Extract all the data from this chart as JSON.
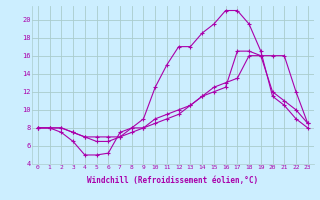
{
  "xlabel": "Windchill (Refroidissement éolien,°C)",
  "bg_color": "#cceeff",
  "grid_color": "#aacccc",
  "line_color": "#aa00aa",
  "xlim": [
    -0.5,
    23.5
  ],
  "ylim": [
    4,
    21.5
  ],
  "xticks": [
    0,
    1,
    2,
    3,
    4,
    5,
    6,
    7,
    8,
    9,
    10,
    11,
    12,
    13,
    14,
    15,
    16,
    17,
    18,
    19,
    20,
    21,
    22,
    23
  ],
  "yticks": [
    4,
    6,
    8,
    10,
    12,
    14,
    16,
    18,
    20
  ],
  "series1_x": [
    0,
    1,
    2,
    3,
    4,
    5,
    6,
    7,
    8,
    9,
    10,
    11,
    12,
    13,
    14,
    15,
    16,
    17,
    18,
    19,
    20,
    21,
    22,
    23
  ],
  "series1_y": [
    8.0,
    8.0,
    7.5,
    6.5,
    5.0,
    5.0,
    5.2,
    7.5,
    8.0,
    9.0,
    12.5,
    15.0,
    17.0,
    17.0,
    18.5,
    19.5,
    21.0,
    21.0,
    19.5,
    16.5,
    11.5,
    10.5,
    9.0,
    8.0
  ],
  "series2_x": [
    0,
    1,
    2,
    3,
    4,
    5,
    6,
    7,
    8,
    9,
    10,
    11,
    12,
    13,
    14,
    15,
    16,
    17,
    18,
    19,
    20,
    21,
    22,
    23
  ],
  "series2_y": [
    8.0,
    8.0,
    8.0,
    7.5,
    7.0,
    7.0,
    7.0,
    7.0,
    7.5,
    8.0,
    8.5,
    9.0,
    9.5,
    10.5,
    11.5,
    12.5,
    13.0,
    13.5,
    16.0,
    16.0,
    16.0,
    16.0,
    12.0,
    8.5
  ],
  "series3_x": [
    0,
    1,
    2,
    3,
    4,
    5,
    6,
    7,
    8,
    9,
    10,
    11,
    12,
    13,
    14,
    15,
    16,
    17,
    18,
    19,
    20,
    21,
    22,
    23
  ],
  "series3_y": [
    8.0,
    8.0,
    8.0,
    7.5,
    7.0,
    6.5,
    6.5,
    7.0,
    8.0,
    8.0,
    9.0,
    9.5,
    10.0,
    10.5,
    11.5,
    12.0,
    12.5,
    16.5,
    16.5,
    16.0,
    12.0,
    11.0,
    10.0,
    8.5
  ]
}
